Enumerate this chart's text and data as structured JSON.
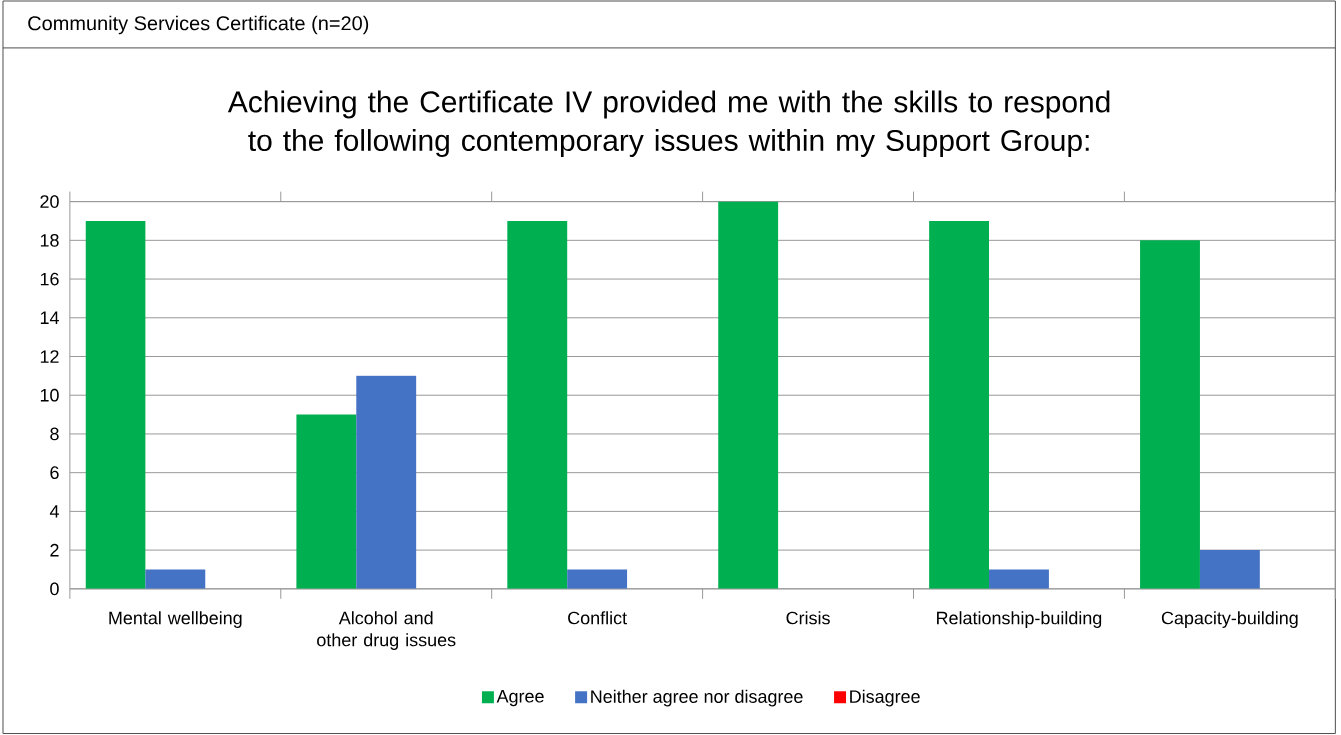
{
  "chart_data": {
    "type": "bar",
    "title": "Achieving the Certificate IV provided me with the skills to respond to the following contemporary issues within my Support Group:",
    "annotations": [
      "Community Services Certificate (n=20)"
    ],
    "categories": [
      "Mental wellbeing",
      "Alcohol and other drug issues",
      "Conflict",
      "Crisis",
      "Relationship-building",
      "Capacity-building"
    ],
    "series": [
      {
        "name": "Agree",
        "color": "#00b050",
        "values": [
          19,
          9,
          19,
          20,
          19,
          18
        ]
      },
      {
        "name": "Neither agree nor disagree",
        "color": "#4472c4",
        "values": [
          1,
          11,
          1,
          0,
          1,
          2
        ]
      },
      {
        "name": "Disagree",
        "color": "#ff0000",
        "values": [
          0,
          0,
          0,
          0,
          0,
          0
        ]
      }
    ],
    "ylim": [
      0,
      20
    ],
    "yticks": [
      0,
      2,
      4,
      6,
      8,
      10,
      12,
      14,
      16,
      18,
      20
    ],
    "grid": "y",
    "legend": "bottom"
  }
}
